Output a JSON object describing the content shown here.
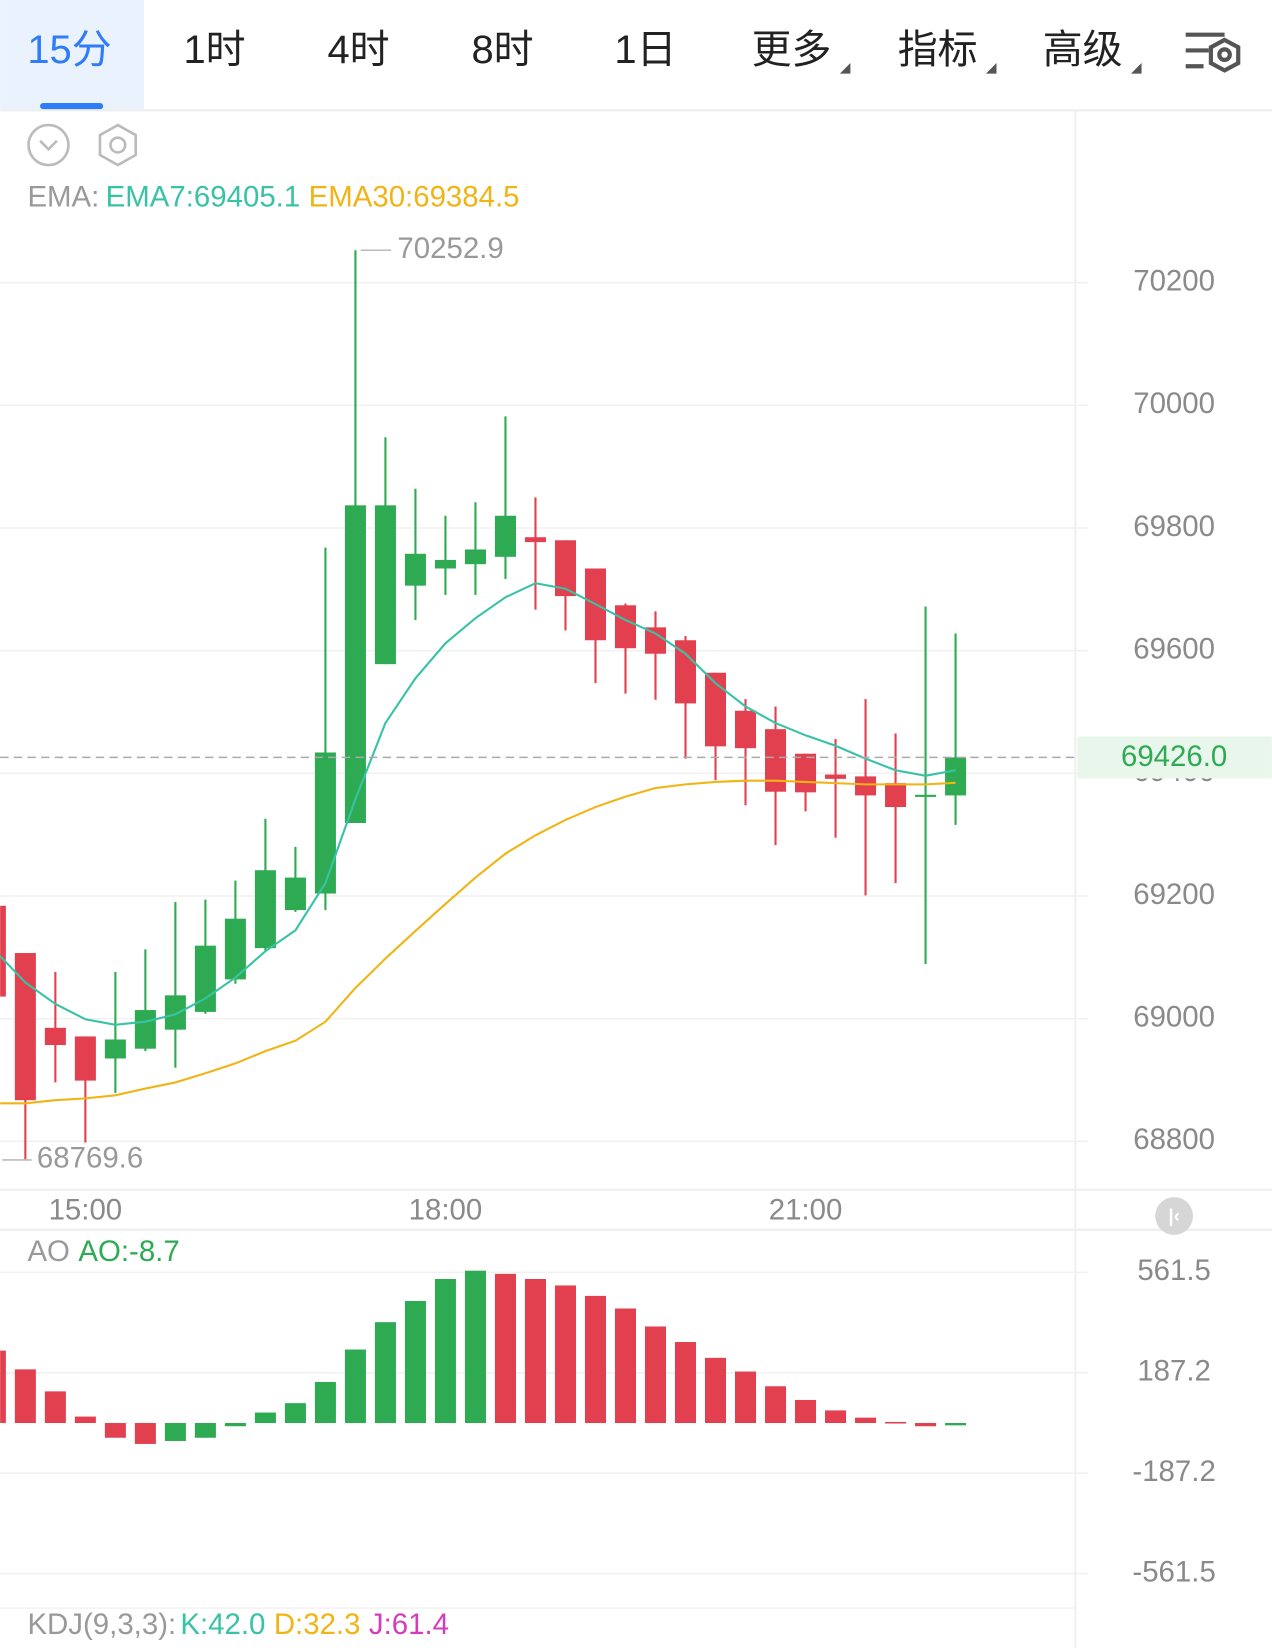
{
  "tabs": {
    "items": [
      "15分",
      "1时",
      "4时",
      "8时",
      "1日",
      "更多",
      "指标",
      "高级"
    ],
    "active": 0
  },
  "chart_data": [
    {
      "type": "candlestick",
      "legend_label": "EMA:",
      "categories": [
        null,
        null,
        null,
        "15:00",
        null,
        null,
        null,
        null,
        null,
        null,
        null,
        null,
        null,
        null,
        null,
        "18:00",
        null,
        null,
        null,
        null,
        null,
        null,
        null,
        null,
        null,
        null,
        null,
        "21:00",
        null,
        null,
        null,
        null,
        null
      ],
      "open": [
        69184,
        69107,
        68985,
        68971,
        68935,
        68951,
        68982,
        69011,
        69064,
        69115,
        69177,
        69204,
        69319,
        69578,
        69706,
        69734,
        69741,
        69753,
        69785,
        69780,
        69734,
        69674,
        69638,
        69617,
        69564,
        69502,
        69472,
        69432,
        69398,
        69395,
        69384,
        69362,
        69364
      ],
      "high": [
        69184,
        69107,
        69076,
        68971,
        69076,
        69113,
        69190,
        69194,
        69225,
        69326,
        69280,
        69768,
        70252.9,
        69948,
        69864,
        69820,
        69842,
        69982,
        69850,
        69780,
        69734,
        69677,
        69664,
        69624,
        69564,
        69521,
        69509,
        69432,
        69456,
        69521,
        69465,
        69672,
        69628
      ],
      "low": [
        69036,
        68769.6,
        68896,
        68798,
        68879,
        68947,
        68920,
        69008,
        69057,
        69110,
        69174,
        69177,
        69319,
        69578,
        69650,
        69691,
        69691,
        69717,
        69667,
        69633,
        69547,
        69530,
        69520,
        69424,
        69389,
        69348,
        69283,
        69338,
        69295,
        69201,
        69221,
        69089,
        69316
      ],
      "close": [
        69036,
        68867,
        68957,
        68899,
        68966,
        69014,
        69038,
        69119,
        69163,
        69242,
        69230,
        69434,
        69837,
        69837,
        69758,
        69748,
        69765,
        69820,
        69777,
        69689,
        69617,
        69604,
        69595,
        69514,
        69444,
        69441,
        69370,
        69369,
        69391,
        69364,
        69345,
        69365,
        69426
      ],
      "up_color": "#2eaa52",
      "down_color": "#e2404f",
      "series": [
        {
          "name": "EMA7:69405.1",
          "color": "#38c2a6",
          "values": [
            69110,
            69059,
            69024,
            68999,
            68990,
            68995,
            69007,
            69033,
            69067,
            69110,
            69144,
            69221,
            69358,
            69482,
            69555,
            69612,
            69653,
            69687,
            69710,
            69701,
            69676,
            69650,
            69628,
            69595,
            69547,
            69509,
            69482,
            69462,
            69445,
            69424,
            69405,
            69396,
            69405.1
          ]
        },
        {
          "name": "EMA30:69384.5",
          "color": "#f0b414",
          "values": [
            68862,
            68862,
            68867,
            68870,
            68875,
            68886,
            68896,
            68911,
            68927,
            68947,
            68964,
            68995,
            69050,
            69098,
            69143,
            69187,
            69230,
            69269,
            69299,
            69324,
            69345,
            69362,
            69376,
            69382,
            69386,
            69388,
            69388,
            69386,
            69384,
            69382,
            69382,
            69382,
            69384.5
          ]
        }
      ],
      "ylim": [
        68721,
        70481
      ],
      "yticks": [
        68800,
        69000,
        69200,
        69400,
        69600,
        69800,
        70000,
        70200
      ],
      "grid": true,
      "last_price": {
        "value": 69426,
        "label": "69426.0"
      },
      "max_label": 70252.9,
      "min_label": 68769.6
    },
    {
      "type": "bar",
      "title": "AO",
      "series": [
        {
          "name": "AO:-8.7",
          "color": "#2eaa52",
          "values": [
            270,
            200,
            118,
            24,
            -55,
            -78,
            -67,
            -55,
            -12,
            39,
            74,
            153,
            274,
            376,
            455,
            537,
            568,
            556,
            537,
            513,
            474,
            427,
            360,
            302,
            243,
            192,
            137,
            86,
            47,
            20,
            4,
            -12,
            -8.7
          ]
        }
      ],
      "up_color": "#2eaa52",
      "down_color": "#e2404f",
      "ylim": [
        -690,
        713
      ],
      "yticks": [
        -561.5,
        -187.2,
        187.2,
        561.5
      ],
      "grid": true
    },
    {
      "type": "line",
      "title": "KDJ(9,3,3):",
      "series": [
        {
          "name": "K:42.0",
          "color": "#38c2a6"
        },
        {
          "name": "D:32.3",
          "color": "#f0b414"
        },
        {
          "name": "J:61.4",
          "color": "#d43cbc"
        }
      ]
    }
  ]
}
